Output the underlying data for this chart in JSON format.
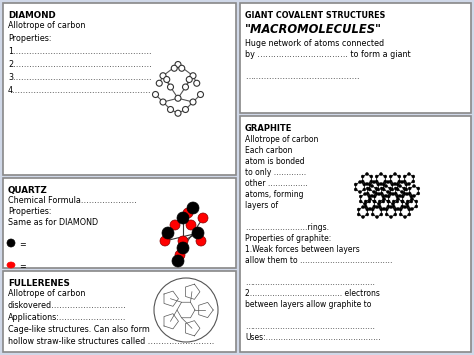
{
  "bg_color": "#d0d8e8",
  "panel_bg": "#ffffff",
  "border_color": "#888888",
  "title_color": "#000000",
  "text_color": "#000000",
  "panels": {
    "diamond": {
      "title": "DIAMOND",
      "lines": [
        "Allotrope of carbon",
        "Properties:",
        "1…………………………………………….",
        "2…………………………………………….",
        "3…………………………………………….",
        "4……………………………………………."
      ]
    },
    "quartz": {
      "title": "QUARTZ",
      "lines": [
        "Chemical Formula…………………",
        "Properties:",
        "Same as for DIAMOND",
        "",
        "●  =",
        "",
        "●  ="
      ]
    },
    "fullerenes": {
      "title": "FULLERENES",
      "lines": [
        "Allotrope of carbon",
        "diskovered……………………….",
        "Applications:…………………….",
        "Cage-like structures. Can also form",
        "hollow straw-like structures called ……………………."
      ]
    },
    "giant": {
      "title": "GIANT COVALENT STRUCTURES",
      "subtitle": "“MACROMOLECULES”",
      "lines": [
        "Huge network of atoms connected",
        "by ……………………………. to form a giant",
        "",
        "……………………………………."
      ]
    },
    "graphite": {
      "title": "GRAPHITE",
      "lines": [
        "Allotrope of carbon",
        "Each carbon",
        "atom is bonded",
        "to only ………….",
        "other …………….",
        "atoms, forming",
        "layers of",
        "",
        "…………………….rings.",
        "Properties of graphite:",
        "1.Weak forces between layers",
        "allow them to ……………………………….",
        "",
        "…………………………………………….",
        "2………………………………. electrons",
        "between layers allow graphite to",
        "",
        "…………………………………………….",
        "Uses:………………………………………."
      ]
    }
  }
}
